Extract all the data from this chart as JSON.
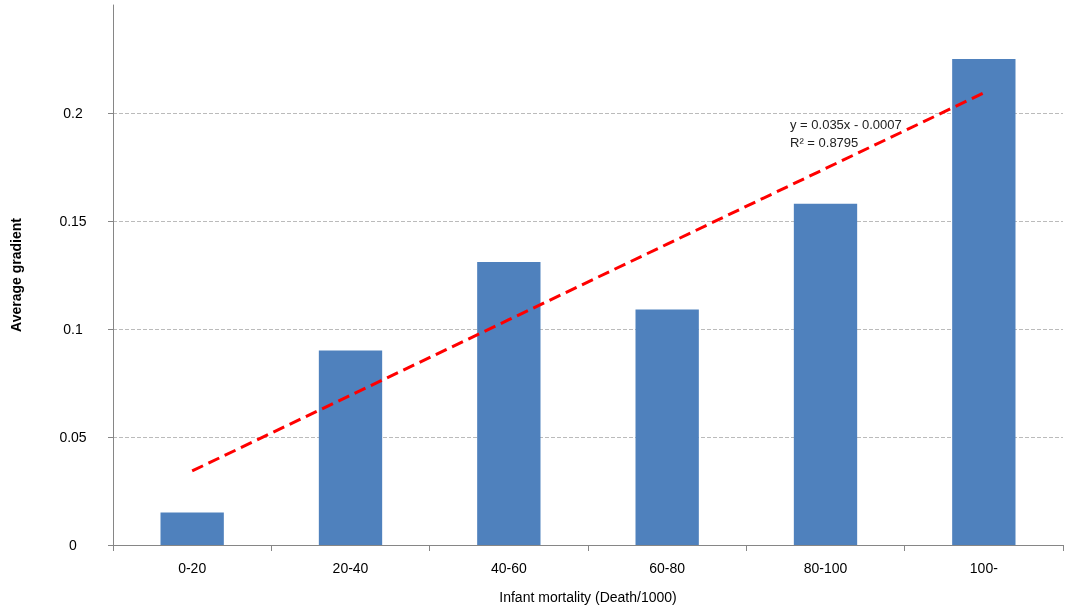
{
  "chart_data": {
    "type": "bar",
    "xlabel": "Infant mortality (Death/1000)",
    "ylabel": "Average gradient",
    "categories": [
      "0-20",
      "20-40",
      "40-60",
      "60-80",
      "80-100",
      "100-"
    ],
    "series": [
      {
        "color": "#4f81bd",
        "values": [
          0.015,
          0.09,
          0.131,
          0.109,
          0.158,
          0.225
        ]
      },
      {
        "type": "line",
        "color": "#ff0000",
        "line_style": "dashed",
        "marker": "none",
        "x": [
          "0-20",
          "20-40",
          "40-60",
          "60-80",
          "80-100",
          "100-"
        ],
        "values": [
          0.0343,
          0.0693,
          0.1043,
          0.1393,
          0.1743,
          0.2093
        ]
      }
    ],
    "annotations": [
      "y = 0.035x - 0.0007",
      "R² = 0.8795"
    ],
    "ylim": [
      0,
      0.25
    ],
    "yticks": [
      0,
      0.05,
      0.1,
      0.15,
      0.2
    ],
    "grid": "y"
  }
}
